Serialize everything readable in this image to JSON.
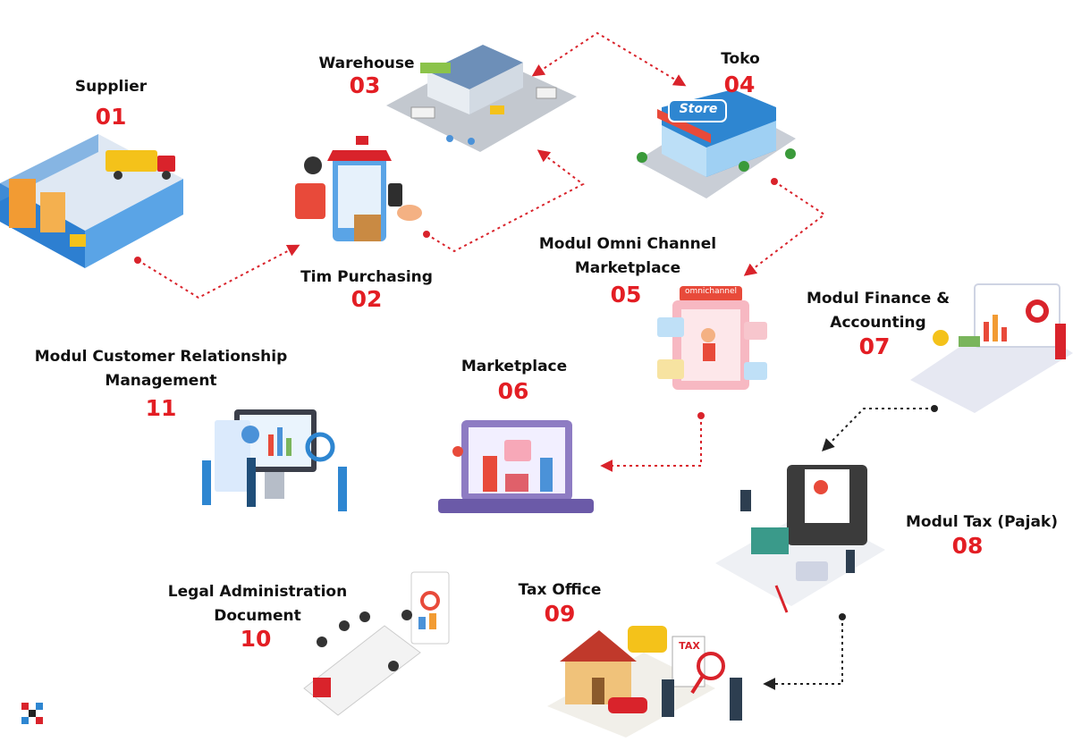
{
  "colors": {
    "accent_red": "#e31e24",
    "connector_red": "#d9232b",
    "connector_dark": "#222222",
    "text": "#111111"
  },
  "nodes": {
    "supplier": {
      "title": "Supplier",
      "number": "01",
      "icon": "warehouse-interior-illustration"
    },
    "purchasing": {
      "title": "Tim Purchasing",
      "number": "02",
      "icon": "mobile-shopping-illustration"
    },
    "warehouse": {
      "title": "Warehouse",
      "number": "03",
      "icon": "warehouse-building-illustration"
    },
    "toko": {
      "title": "Toko",
      "number": "04",
      "icon": "store-front-illustration"
    },
    "omni": {
      "title_line1": "Modul Omni Channel",
      "title_line2": "Marketplace",
      "number": "05",
      "icon": "omnichannel-illustration",
      "sign": "omnichannel"
    },
    "marketplace": {
      "title": "Marketplace",
      "number": "06",
      "icon": "online-marketplace-illustration"
    },
    "finance": {
      "title_line1": "Modul Finance &",
      "title_line2": "Accounting",
      "number": "07",
      "icon": "finance-dashboard-illustration"
    },
    "tax": {
      "title": "Modul Tax (Pajak)",
      "number": "08",
      "icon": "tax-documents-illustration"
    },
    "taxoffice": {
      "title": "Tax Office",
      "number": "09",
      "icon": "tax-office-illustration",
      "tag": "TAX"
    },
    "legal": {
      "title_line1": "Legal Administration",
      "title_line2": "Document",
      "number": "10",
      "icon": "meeting-room-illustration"
    },
    "crm": {
      "title_line1": "Modul Customer Relationship",
      "title_line2": "Management",
      "number": "11",
      "icon": "crm-dashboard-illustration"
    }
  },
  "store_sign": "Store",
  "brand_logo": "checker-logo-icon"
}
